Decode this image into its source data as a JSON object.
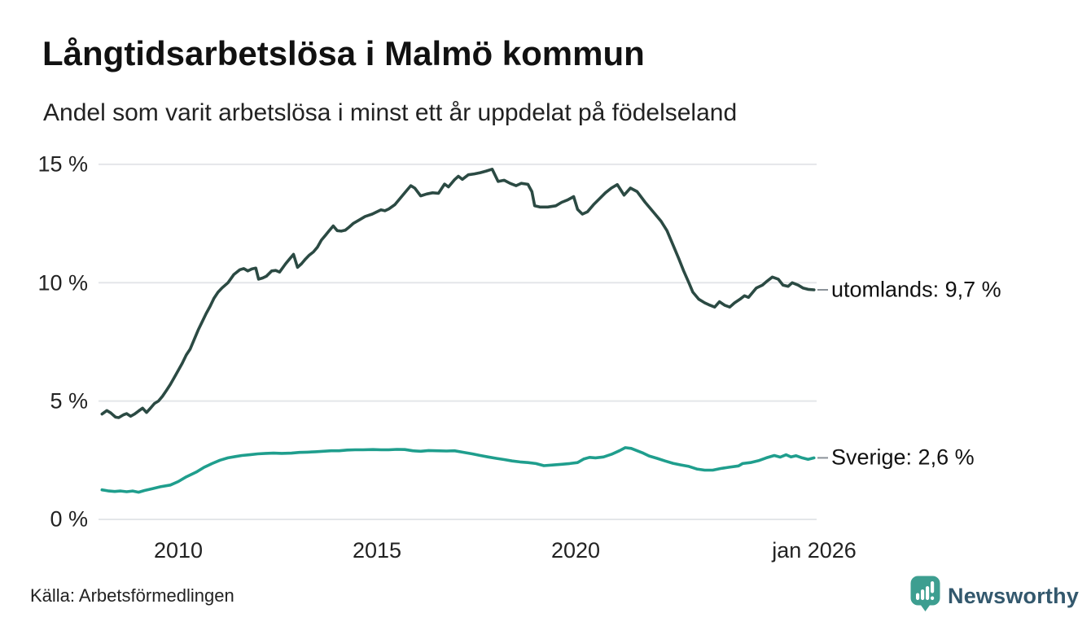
{
  "title": "Långtidsarbetslösa i Malmö kommun",
  "subtitle": "Andel som varit arbetslösa i minst ett år uppdelat på födelseland",
  "footer": {
    "source": "Källa: Arbetsförmedlingen",
    "brand": "Newsworthy"
  },
  "colors": {
    "background": "#ffffff",
    "grid": "#e4e6e9",
    "text": "#111111",
    "tick_text": "#222222",
    "dash": "#8b9299",
    "series_utomlands": "#2b4a43",
    "series_sverige": "#1f9e8d",
    "brand_badge": "#3d9e90",
    "brand_text": "#33586d"
  },
  "chart_data": {
    "type": "line",
    "title": "Långtidsarbetslösa i Malmö kommun",
    "subtitle": "Andel som varit arbetslösa i minst ett år uppdelat på födelseland",
    "grid": true,
    "legend_position": "line-end-labels",
    "x_axis": {
      "range": [
        2008.08,
        2026.05
      ],
      "ticks": [
        {
          "label": "2010",
          "year": 2010
        },
        {
          "label": "2015",
          "year": 2015
        },
        {
          "label": "2020",
          "year": 2020
        },
        {
          "label": "jan 2026",
          "year": 2026
        }
      ]
    },
    "y_axis": {
      "unit": "%",
      "range": [
        0,
        15.5
      ],
      "ticks": [
        {
          "label": "0 %",
          "value": 0
        },
        {
          "label": "5 %",
          "value": 5
        },
        {
          "label": "10 %",
          "value": 10
        },
        {
          "label": "15 %",
          "value": 15
        }
      ]
    },
    "series": [
      {
        "name": "utomlands",
        "end_label": "utomlands: 9,7 %",
        "last_value": "9,7 %",
        "color": "#2b4a43",
        "points": [
          [
            2008.08,
            4.45
          ],
          [
            2008.2,
            4.6
          ],
          [
            2008.3,
            4.5
          ],
          [
            2008.42,
            4.32
          ],
          [
            2008.5,
            4.3
          ],
          [
            2008.62,
            4.42
          ],
          [
            2008.7,
            4.47
          ],
          [
            2008.8,
            4.36
          ],
          [
            2008.9,
            4.45
          ],
          [
            2009.0,
            4.58
          ],
          [
            2009.1,
            4.7
          ],
          [
            2009.2,
            4.52
          ],
          [
            2009.3,
            4.7
          ],
          [
            2009.4,
            4.9
          ],
          [
            2009.5,
            5.0
          ],
          [
            2009.6,
            5.2
          ],
          [
            2009.7,
            5.45
          ],
          [
            2009.8,
            5.7
          ],
          [
            2009.9,
            6.0
          ],
          [
            2010.0,
            6.3
          ],
          [
            2010.1,
            6.6
          ],
          [
            2010.2,
            6.95
          ],
          [
            2010.3,
            7.2
          ],
          [
            2010.4,
            7.6
          ],
          [
            2010.5,
            8.0
          ],
          [
            2010.6,
            8.35
          ],
          [
            2010.7,
            8.7
          ],
          [
            2010.8,
            9.0
          ],
          [
            2010.9,
            9.35
          ],
          [
            2011.0,
            9.6
          ],
          [
            2011.1,
            9.78
          ],
          [
            2011.25,
            10.0
          ],
          [
            2011.4,
            10.35
          ],
          [
            2011.55,
            10.55
          ],
          [
            2011.65,
            10.6
          ],
          [
            2011.75,
            10.5
          ],
          [
            2011.85,
            10.58
          ],
          [
            2011.95,
            10.62
          ],
          [
            2012.02,
            10.15
          ],
          [
            2012.12,
            10.2
          ],
          [
            2012.22,
            10.28
          ],
          [
            2012.35,
            10.5
          ],
          [
            2012.45,
            10.52
          ],
          [
            2012.55,
            10.45
          ],
          [
            2012.7,
            10.8
          ],
          [
            2012.8,
            11.0
          ],
          [
            2012.9,
            11.2
          ],
          [
            2013.0,
            10.65
          ],
          [
            2013.1,
            10.8
          ],
          [
            2013.2,
            11.0
          ],
          [
            2013.3,
            11.17
          ],
          [
            2013.4,
            11.3
          ],
          [
            2013.5,
            11.5
          ],
          [
            2013.6,
            11.8
          ],
          [
            2013.7,
            12.0
          ],
          [
            2013.8,
            12.2
          ],
          [
            2013.9,
            12.4
          ],
          [
            2014.0,
            12.2
          ],
          [
            2014.1,
            12.18
          ],
          [
            2014.2,
            12.22
          ],
          [
            2014.3,
            12.35
          ],
          [
            2014.4,
            12.5
          ],
          [
            2014.55,
            12.65
          ],
          [
            2014.7,
            12.8
          ],
          [
            2014.88,
            12.9
          ],
          [
            2015.0,
            13.0
          ],
          [
            2015.1,
            13.08
          ],
          [
            2015.2,
            13.04
          ],
          [
            2015.3,
            13.12
          ],
          [
            2015.45,
            13.3
          ],
          [
            2015.6,
            13.6
          ],
          [
            2015.75,
            13.9
          ],
          [
            2015.85,
            14.1
          ],
          [
            2015.95,
            14.0
          ],
          [
            2016.1,
            13.67
          ],
          [
            2016.25,
            13.75
          ],
          [
            2016.4,
            13.8
          ],
          [
            2016.55,
            13.78
          ],
          [
            2016.7,
            14.17
          ],
          [
            2016.8,
            14.05
          ],
          [
            2016.95,
            14.35
          ],
          [
            2017.05,
            14.5
          ],
          [
            2017.15,
            14.37
          ],
          [
            2017.3,
            14.56
          ],
          [
            2017.45,
            14.6
          ],
          [
            2017.6,
            14.65
          ],
          [
            2017.75,
            14.72
          ],
          [
            2017.9,
            14.8
          ],
          [
            2018.05,
            14.28
          ],
          [
            2018.2,
            14.33
          ],
          [
            2018.35,
            14.2
          ],
          [
            2018.5,
            14.1
          ],
          [
            2018.63,
            14.2
          ],
          [
            2018.8,
            14.16
          ],
          [
            2018.9,
            13.85
          ],
          [
            2018.97,
            13.25
          ],
          [
            2019.1,
            13.2
          ],
          [
            2019.3,
            13.2
          ],
          [
            2019.5,
            13.25
          ],
          [
            2019.65,
            13.4
          ],
          [
            2019.8,
            13.5
          ],
          [
            2019.95,
            13.64
          ],
          [
            2020.05,
            13.1
          ],
          [
            2020.17,
            12.9
          ],
          [
            2020.3,
            13.0
          ],
          [
            2020.45,
            13.3
          ],
          [
            2020.6,
            13.55
          ],
          [
            2020.75,
            13.8
          ],
          [
            2020.9,
            14.0
          ],
          [
            2021.05,
            14.15
          ],
          [
            2021.22,
            13.7
          ],
          [
            2021.38,
            14.0
          ],
          [
            2021.55,
            13.85
          ],
          [
            2021.75,
            13.4
          ],
          [
            2021.95,
            13.0
          ],
          [
            2022.15,
            12.6
          ],
          [
            2022.3,
            12.2
          ],
          [
            2022.45,
            11.6
          ],
          [
            2022.6,
            11.0
          ],
          [
            2022.72,
            10.5
          ],
          [
            2022.85,
            10.0
          ],
          [
            2022.95,
            9.6
          ],
          [
            2023.1,
            9.3
          ],
          [
            2023.25,
            9.15
          ],
          [
            2023.35,
            9.07
          ],
          [
            2023.5,
            8.97
          ],
          [
            2023.62,
            9.2
          ],
          [
            2023.75,
            9.05
          ],
          [
            2023.88,
            8.97
          ],
          [
            2024.0,
            9.15
          ],
          [
            2024.15,
            9.32
          ],
          [
            2024.25,
            9.45
          ],
          [
            2024.35,
            9.38
          ],
          [
            2024.55,
            9.78
          ],
          [
            2024.7,
            9.9
          ],
          [
            2024.82,
            10.07
          ],
          [
            2024.95,
            10.24
          ],
          [
            2025.1,
            10.15
          ],
          [
            2025.22,
            9.9
          ],
          [
            2025.35,
            9.85
          ],
          [
            2025.45,
            10.0
          ],
          [
            2025.6,
            9.9
          ],
          [
            2025.72,
            9.78
          ],
          [
            2025.85,
            9.72
          ],
          [
            2026.0,
            9.7
          ]
        ]
      },
      {
        "name": "Sverige",
        "end_label": "Sverige: 2,6 %",
        "last_value": "2,6 %",
        "color": "#1f9e8d",
        "points": [
          [
            2008.08,
            1.25
          ],
          [
            2008.25,
            1.2
          ],
          [
            2008.4,
            1.18
          ],
          [
            2008.55,
            1.2
          ],
          [
            2008.7,
            1.17
          ],
          [
            2008.85,
            1.2
          ],
          [
            2009.0,
            1.15
          ],
          [
            2009.15,
            1.22
          ],
          [
            2009.35,
            1.3
          ],
          [
            2009.55,
            1.38
          ],
          [
            2009.8,
            1.45
          ],
          [
            2010.0,
            1.6
          ],
          [
            2010.2,
            1.8
          ],
          [
            2010.45,
            2.0
          ],
          [
            2010.65,
            2.2
          ],
          [
            2010.85,
            2.36
          ],
          [
            2011.05,
            2.5
          ],
          [
            2011.25,
            2.6
          ],
          [
            2011.45,
            2.66
          ],
          [
            2011.6,
            2.7
          ],
          [
            2011.8,
            2.73
          ],
          [
            2012.0,
            2.77
          ],
          [
            2012.2,
            2.79
          ],
          [
            2012.4,
            2.8
          ],
          [
            2012.6,
            2.79
          ],
          [
            2012.85,
            2.8
          ],
          [
            2013.05,
            2.83
          ],
          [
            2013.25,
            2.84
          ],
          [
            2013.45,
            2.86
          ],
          [
            2013.65,
            2.88
          ],
          [
            2013.85,
            2.9
          ],
          [
            2014.05,
            2.9
          ],
          [
            2014.25,
            2.93
          ],
          [
            2014.45,
            2.94
          ],
          [
            2014.65,
            2.94
          ],
          [
            2014.9,
            2.95
          ],
          [
            2015.1,
            2.94
          ],
          [
            2015.3,
            2.94
          ],
          [
            2015.5,
            2.96
          ],
          [
            2015.7,
            2.95
          ],
          [
            2015.9,
            2.9
          ],
          [
            2016.1,
            2.88
          ],
          [
            2016.3,
            2.91
          ],
          [
            2016.5,
            2.9
          ],
          [
            2016.75,
            2.89
          ],
          [
            2016.95,
            2.9
          ],
          [
            2017.15,
            2.84
          ],
          [
            2017.4,
            2.77
          ],
          [
            2017.6,
            2.7
          ],
          [
            2017.8,
            2.64
          ],
          [
            2018.0,
            2.58
          ],
          [
            2018.2,
            2.53
          ],
          [
            2018.4,
            2.47
          ],
          [
            2018.6,
            2.43
          ],
          [
            2018.8,
            2.4
          ],
          [
            2019.0,
            2.36
          ],
          [
            2019.2,
            2.27
          ],
          [
            2019.45,
            2.3
          ],
          [
            2019.65,
            2.33
          ],
          [
            2019.85,
            2.36
          ],
          [
            2020.05,
            2.4
          ],
          [
            2020.2,
            2.55
          ],
          [
            2020.35,
            2.62
          ],
          [
            2020.5,
            2.6
          ],
          [
            2020.7,
            2.64
          ],
          [
            2020.9,
            2.75
          ],
          [
            2021.1,
            2.9
          ],
          [
            2021.25,
            3.03
          ],
          [
            2021.4,
            3.0
          ],
          [
            2021.55,
            2.9
          ],
          [
            2021.7,
            2.8
          ],
          [
            2021.85,
            2.68
          ],
          [
            2022.05,
            2.58
          ],
          [
            2022.25,
            2.47
          ],
          [
            2022.45,
            2.37
          ],
          [
            2022.65,
            2.3
          ],
          [
            2022.85,
            2.24
          ],
          [
            2023.05,
            2.13
          ],
          [
            2023.25,
            2.08
          ],
          [
            2023.45,
            2.08
          ],
          [
            2023.65,
            2.15
          ],
          [
            2023.85,
            2.2
          ],
          [
            2024.1,
            2.26
          ],
          [
            2024.2,
            2.36
          ],
          [
            2024.4,
            2.4
          ],
          [
            2024.6,
            2.48
          ],
          [
            2024.8,
            2.6
          ],
          [
            2025.0,
            2.7
          ],
          [
            2025.15,
            2.63
          ],
          [
            2025.3,
            2.73
          ],
          [
            2025.42,
            2.64
          ],
          [
            2025.55,
            2.69
          ],
          [
            2025.7,
            2.6
          ],
          [
            2025.85,
            2.54
          ],
          [
            2026.0,
            2.6
          ]
        ]
      }
    ]
  }
}
